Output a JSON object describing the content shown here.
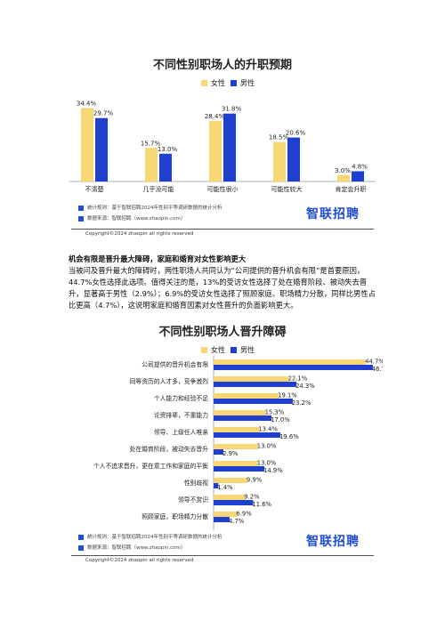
{
  "colors": {
    "female": "#f7d774",
    "male": "#1f3fd0"
  },
  "legend": {
    "female": "女性",
    "male": "男性"
  },
  "footer": {
    "method": "统计规则：基于智联招聘2024年性别平等调研数据的统计分析",
    "source": "数据来源：智联招聘（www.zhaopin.com）",
    "brand": "智联招聘",
    "copyright": "Copyright©2024 zhaopin all rights reserved"
  },
  "text": {
    "heading": "机会有限是晋升最大障碍，家庭和婚育对女性影响更大",
    "body": "当被问及晋升最大的障碍时，两性职场人共同认为“公司提供的晋升机会有限”是首要原因，44.7%女性选择此选项。值得关注的是，13%的受访女性选择了处在婚育阶段、被动失去晋升，显著高于男性（2.9%）；6.9%的受访女性选择了照顾家庭、职场精力分散，同样比男性占比更高（4.7%），这说明家庭和婚育因素对女性晋升的负面影响更大。"
  },
  "chart_data": [
    {
      "type": "bar",
      "title": "不同性别职场人的升职预期",
      "categories": [
        "不清楚",
        "几乎没可能",
        "可能性很小",
        "可能性较大",
        "肯定会升职"
      ],
      "series": [
        {
          "name": "女性",
          "values": [
            34.4,
            15.7,
            28.4,
            18.5,
            3.0
          ],
          "labels": [
            "34.4%",
            "15.7%",
            "28.4%",
            "18.5%",
            "3.0%"
          ]
        },
        {
          "name": "男性",
          "values": [
            29.7,
            13.0,
            31.8,
            20.6,
            4.8
          ],
          "labels": [
            "29.7%",
            "13.0%",
            "31.8%",
            "20.6%",
            "4.8%"
          ]
        }
      ],
      "legend_position": "top-right"
    },
    {
      "type": "bar",
      "orientation": "horizontal",
      "title": "不同性别职场人晋升障碍",
      "categories": [
        "公司提供的晋升机会有限",
        "同等资历的人才多，竞争激烈",
        "个人能力和经验不足",
        "论资排辈，不重能力",
        "领导、上级任人唯亲",
        "处在婚育阶段，被动失去晋升",
        "个人不追求晋升，更在意工作和家庭的平衡",
        "性别歧视",
        "领导不赏识",
        "照顾家庭，职场精力分散"
      ],
      "series": [
        {
          "name": "女性",
          "values": [
            44.7,
            22.1,
            19.1,
            15.3,
            13.4,
            13.0,
            13.0,
            9.9,
            9.2,
            6.9
          ],
          "labels": [
            "44.7%",
            "22.1%",
            "19.1%",
            "15.3%",
            "13.4%",
            "13.0%",
            "13.0%",
            "9.9%",
            "9.2%",
            "6.9%"
          ]
        },
        {
          "name": "男性",
          "values": [
            46.7,
            24.3,
            23.2,
            17.0,
            19.6,
            2.9,
            14.9,
            1.4,
            11.6,
            4.7
          ],
          "labels": [
            "46.7%",
            "24.3%",
            "23.2%",
            "17.0%",
            "19.6%",
            "2.9%",
            "14.9%",
            "1.4%",
            "11.6%",
            "4.7%"
          ]
        }
      ],
      "legend_position": "top-right"
    }
  ]
}
